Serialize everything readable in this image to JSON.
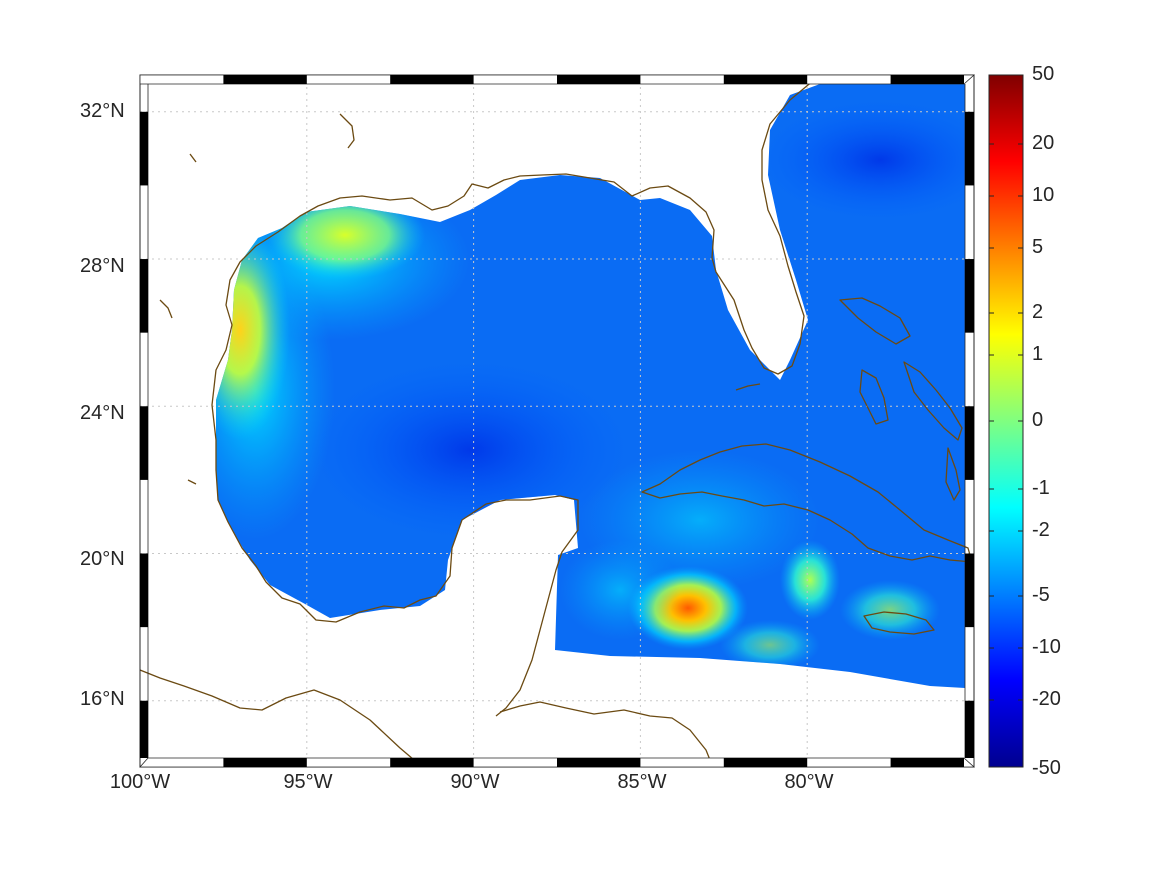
{
  "map": {
    "lat_labels": [
      {
        "value": 32,
        "text": "32°N"
      },
      {
        "value": 28,
        "text": "28°N"
      },
      {
        "value": 24,
        "text": "24°N"
      },
      {
        "value": 20,
        "text": "20°N"
      },
      {
        "value": 16,
        "text": "16°N"
      }
    ],
    "lon_labels": [
      {
        "value": -100,
        "text": "100°W"
      },
      {
        "value": -95,
        "text": "95°W"
      },
      {
        "value": -90,
        "text": "90°W"
      },
      {
        "value": -85,
        "text": "85°W"
      },
      {
        "value": -80,
        "text": "80°W"
      }
    ],
    "lon_range": [
      -100,
      -75
    ],
    "lat_range": [
      14.2,
      33
    ],
    "grid": true,
    "coastline_color": "#6b4a12",
    "colormap": "jet"
  },
  "colorbar": {
    "ticks": [
      "50",
      "20",
      "10",
      "5",
      "2",
      "1",
      "0",
      "-1",
      "-2",
      "-5",
      "-10",
      "-20",
      "-50"
    ]
  }
}
